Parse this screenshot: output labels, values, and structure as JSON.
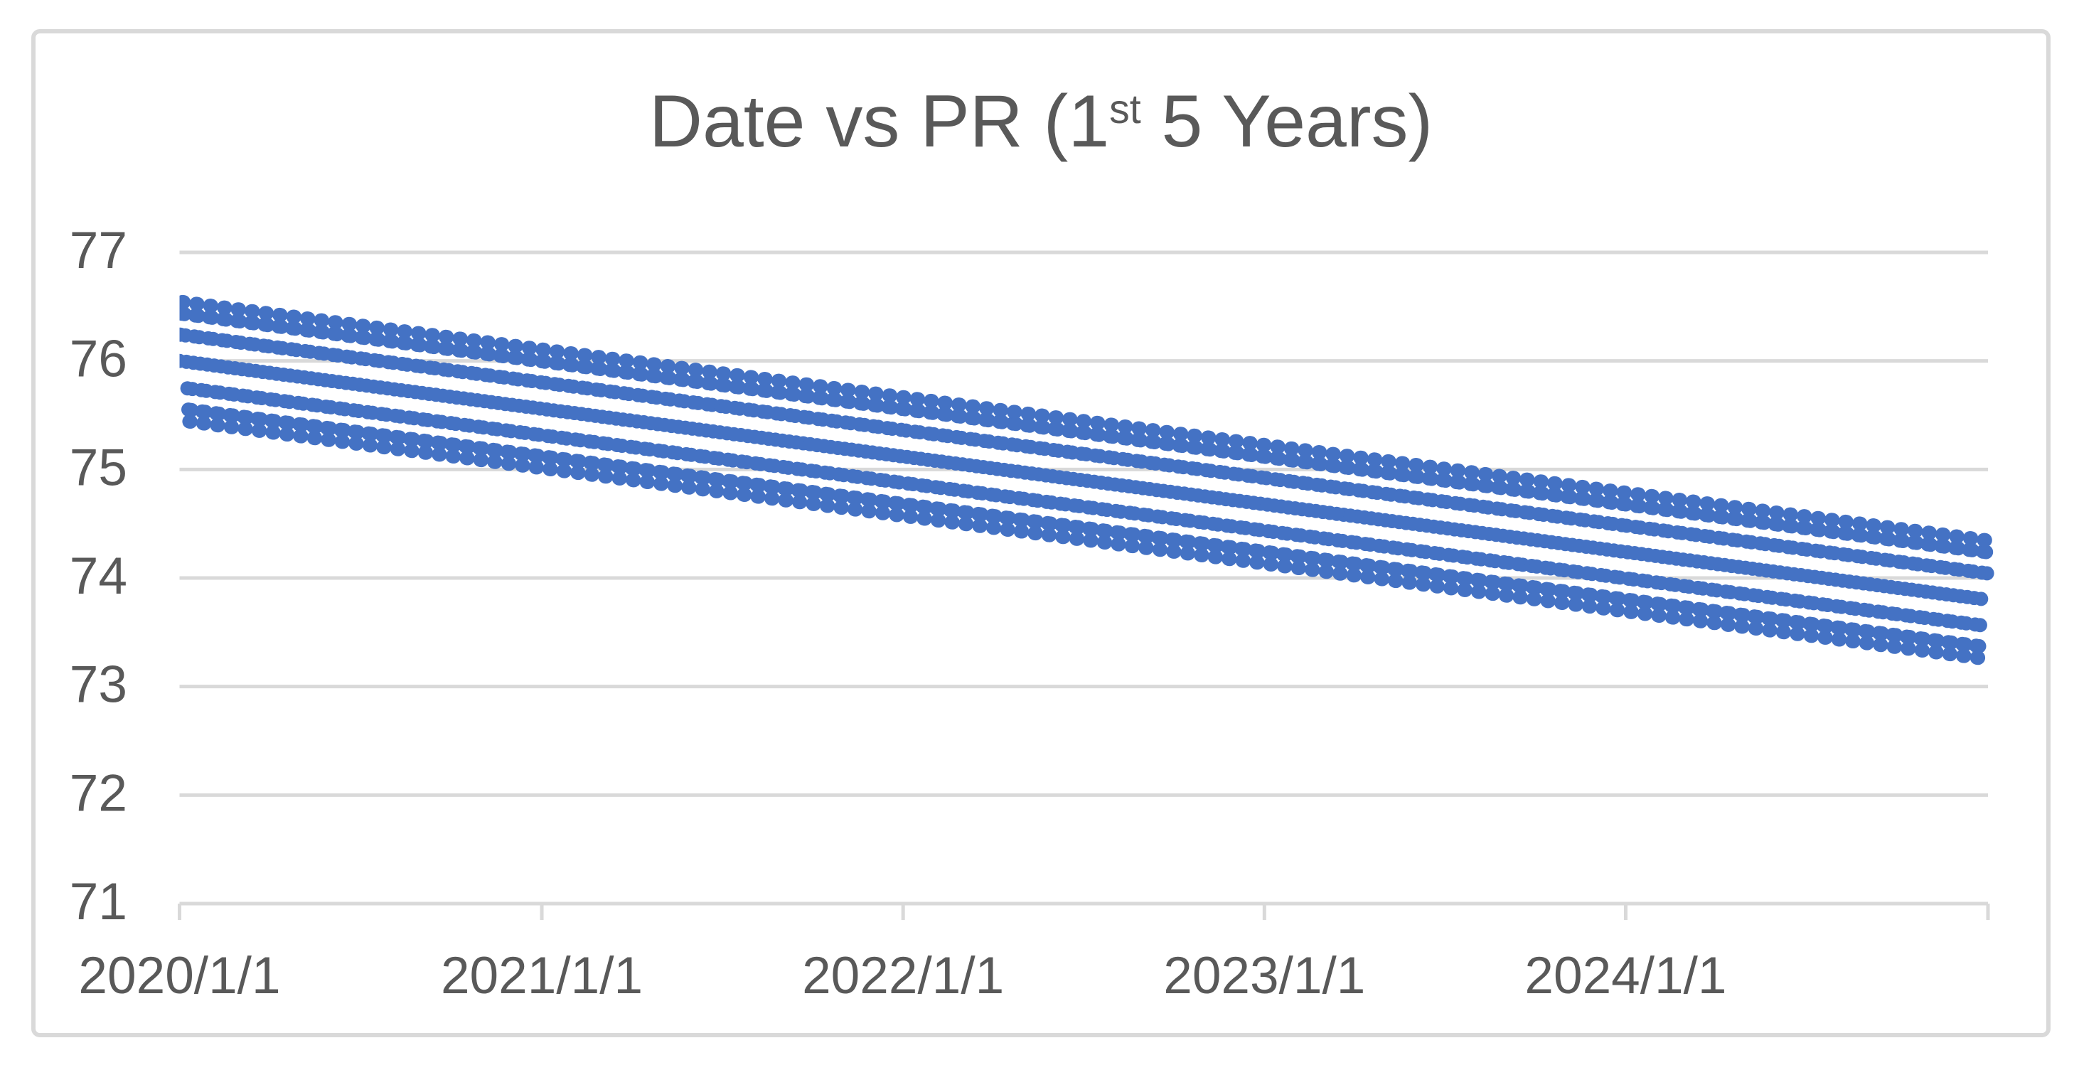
{
  "page": {
    "background": "#FFFFFF"
  },
  "chart": {
    "frame_border_color": "#D9D9D9",
    "title": {
      "full_text": "Date vs PR (1st 5 Years)",
      "prefix": "Date vs PR (1",
      "superscript": "st",
      "suffix": " 5 Years)",
      "color": "#595959"
    }
  },
  "chart_data": {
    "type": "scatter",
    "title": "Date vs PR (1st 5 Years)",
    "xlabel": "",
    "ylabel": "",
    "legend": "none",
    "grid": {
      "horizontal": true,
      "vertical": false,
      "color": "#D9D9D9"
    },
    "x_axis": {
      "tick_labels": [
        "2020/1/1",
        "2021/1/1",
        "2022/1/1",
        "2023/1/1",
        "2024/1/1"
      ],
      "tick_day_offsets": [
        0,
        366,
        731,
        1096,
        1461
      ],
      "unlabeled_end_tick_day": 1827,
      "range_days": [
        0,
        1827
      ],
      "label_color": "#595959",
      "axis_line_color": "#D9D9D9"
    },
    "y_axis": {
      "tick_labels": [
        "71",
        "72",
        "73",
        "74",
        "75",
        "76",
        "77"
      ],
      "tick_values": [
        71,
        72,
        73,
        74,
        75,
        76,
        77
      ],
      "ylim": [
        71,
        77
      ],
      "label_color": "#595959"
    },
    "series": [
      {
        "name": "PR",
        "marker_color": "#4472C4",
        "marker_radius_px": 10,
        "sampling": "daily",
        "num_points": 1827,
        "start_date": "2020/1/1",
        "end_date": "2024/12/31",
        "trend_start_value": 76.0,
        "trend_end_value": 73.8,
        "oscillation_amplitude": 0.56,
        "oscillation_period_days": 14,
        "envelope": {
          "start_top": 76.6,
          "start_bottom": 75.4,
          "end_top": 74.4,
          "end_bottom": 73.2
        }
      }
    ]
  }
}
